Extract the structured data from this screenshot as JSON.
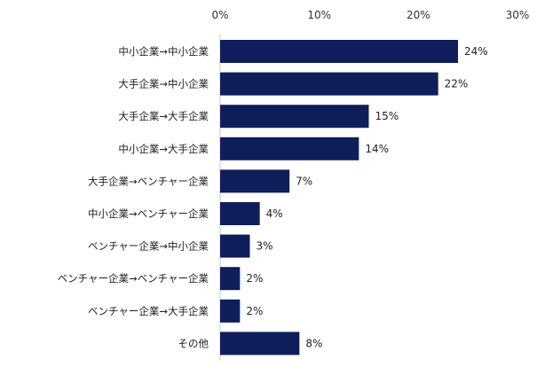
{
  "chart_data": {
    "type": "bar",
    "orientation": "horizontal",
    "title": "",
    "xlabel": "",
    "ylabel": "",
    "categories": [
      "中小企業→中小企業",
      "大手企業→中小企業",
      "大手企業→大手企業",
      "中小企業→大手企業",
      "大手企業→ベンチャー企業",
      "中小企業→ベンチャー企業",
      "ベンチャー企業→中小企業",
      "ベンチャー企業→ベンチャー企業",
      "ベンチャー企業→大手企業",
      "その他"
    ],
    "values": [
      24,
      22,
      15,
      14,
      7,
      4,
      3,
      2,
      2,
      8
    ],
    "data_labels": [
      "24%",
      "22%",
      "15%",
      "14%",
      "7%",
      "4%",
      "3%",
      "2%",
      "2%",
      "8%"
    ],
    "xlim": [
      0,
      30
    ],
    "ticks": [
      0,
      10,
      20,
      30
    ],
    "tick_labels": [
      "0%",
      "10%",
      "20%",
      "30%"
    ],
    "axis_position": "top",
    "grid": false,
    "bar_color": "#0f1e5a"
  }
}
